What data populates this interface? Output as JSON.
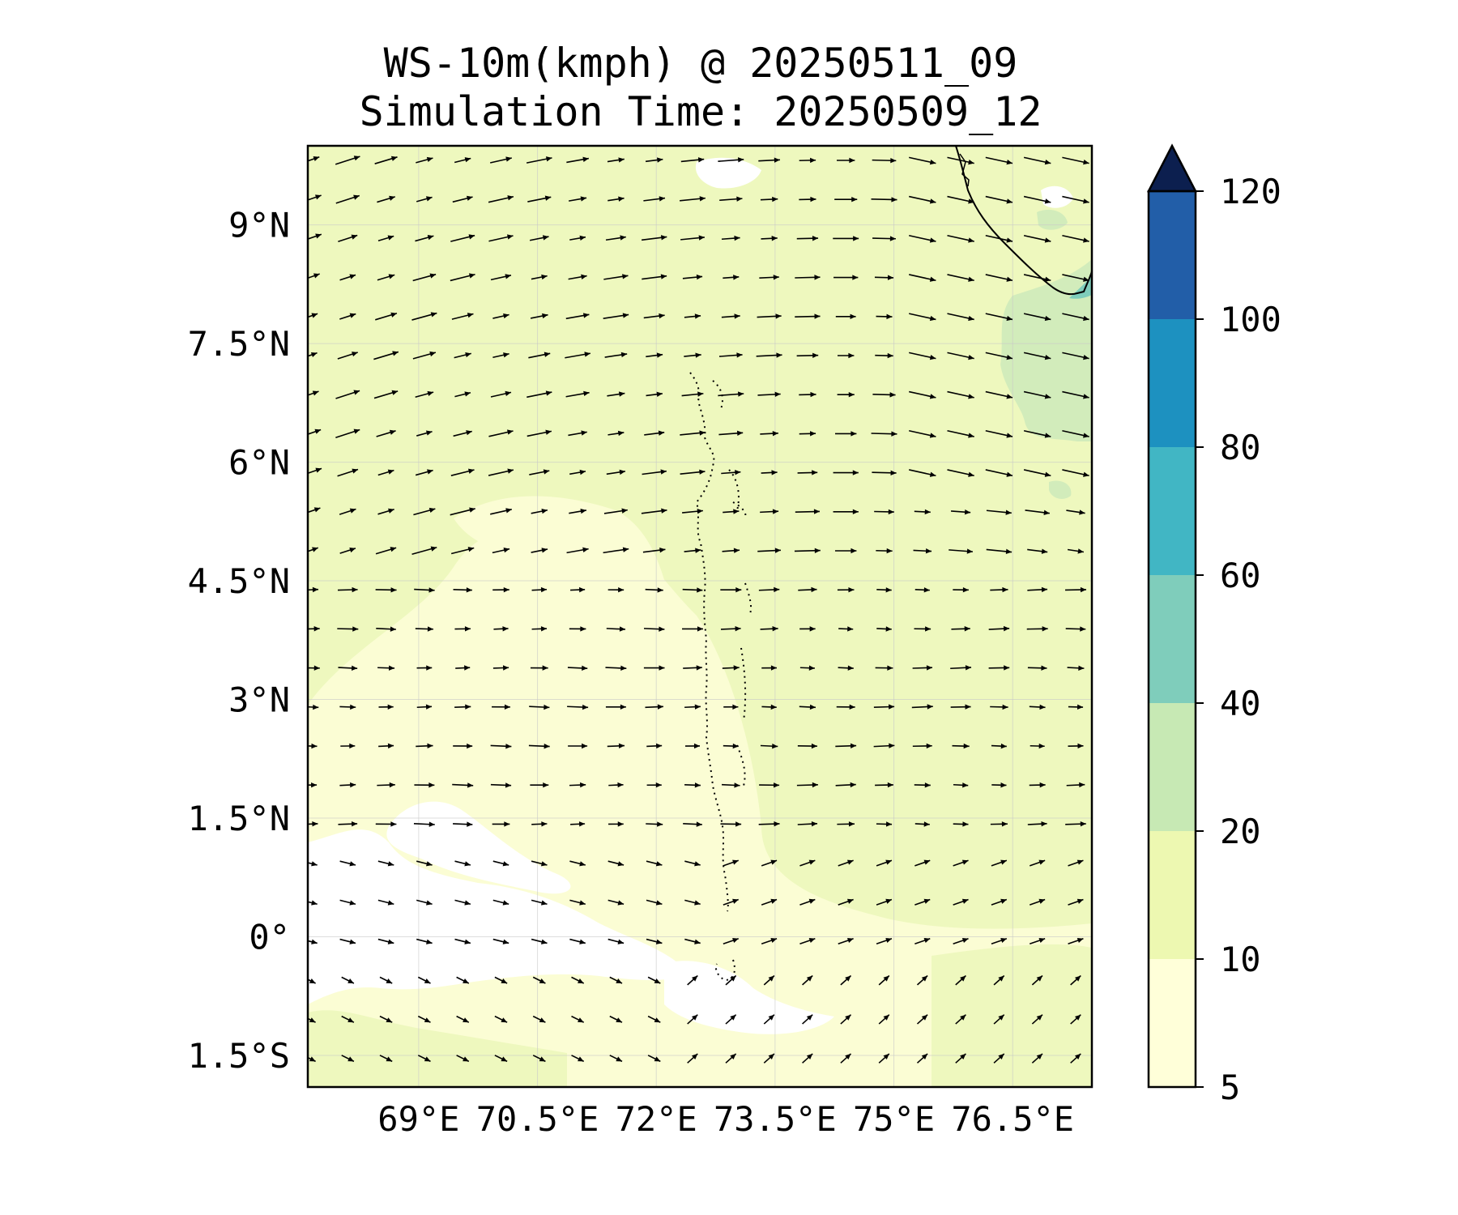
{
  "title": {
    "line1": "WS-10m(kmph) @ 20250511_09",
    "line2": "Simulation Time: 20250509_12"
  },
  "map": {
    "lat_range": [
      -1.9,
      10.0
    ],
    "lon_range": [
      67.6,
      77.5
    ],
    "lat_ticks": [
      {
        "value": 9.0,
        "label": "9°N"
      },
      {
        "value": 7.5,
        "label": "7.5°N"
      },
      {
        "value": 6.0,
        "label": "6°N"
      },
      {
        "value": 4.5,
        "label": "4.5°N"
      },
      {
        "value": 3.0,
        "label": "3°N"
      },
      {
        "value": 1.5,
        "label": "1.5°N"
      },
      {
        "value": 0.0,
        "label": "0°"
      },
      {
        "value": -1.5,
        "label": "1.5°S"
      }
    ],
    "lon_ticks": [
      {
        "value": 69.0,
        "label": "69°E"
      },
      {
        "value": 70.5,
        "label": "70.5°E"
      },
      {
        "value": 72.0,
        "label": "72°E"
      },
      {
        "value": 73.5,
        "label": "73.5°E"
      },
      {
        "value": 75.0,
        "label": "75°E"
      },
      {
        "value": 76.5,
        "label": "76.5°E"
      }
    ],
    "gridlines": true,
    "field_note": "mostly 5-20 kmph; 20-40 kmph patch near SW India coast; calm (<5) patches near equator west of 73.5°E"
  },
  "colorbar": {
    "levels": [
      5,
      10,
      20,
      40,
      60,
      80,
      100,
      120
    ],
    "tick_labels": [
      "5",
      "10",
      "20",
      "40",
      "60",
      "80",
      "100",
      "120"
    ],
    "colors": [
      "#ffffd9",
      "#edf8b1",
      "#c7e9b4",
      "#7fcdbb",
      "#41b6c4",
      "#1d91c0",
      "#225ea8",
      "#0c2c84"
    ],
    "extend": "max",
    "extend_color": "#0c1f4f"
  },
  "colors": {
    "background_calm": "#ffffff",
    "band_5_10": "#fbfdd4",
    "band_10_20": "#eef8be",
    "band_20_40": "#d2ecbb",
    "band_40_60": "#7fcdbb",
    "coast": "#000000"
  }
}
